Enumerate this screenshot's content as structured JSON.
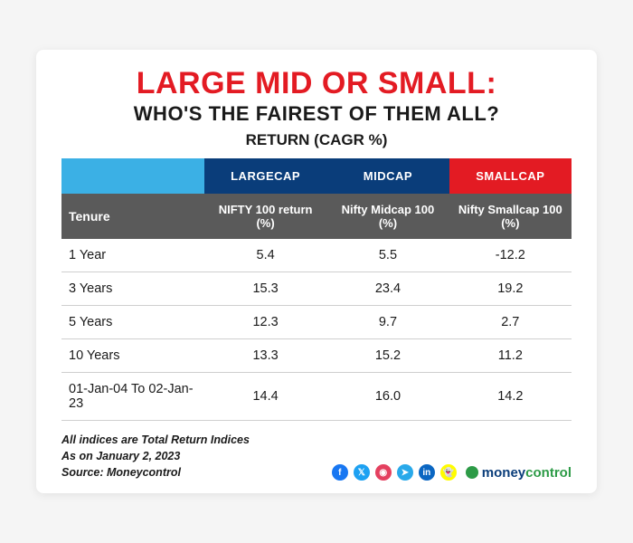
{
  "title": {
    "main": "LARGE MID OR SMALL:",
    "sub": "WHO'S THE FAIREST OF THEM ALL?",
    "metric": "RETURN (CAGR %)",
    "main_color": "#e31b23"
  },
  "table": {
    "header_bg": {
      "blank": "#3bb0e5",
      "col1": "#0a3d7a",
      "col2": "#0a3d7a",
      "col3": "#e31b23"
    },
    "subhead_bg": "#5a5a5a",
    "row_border": "#cfcfcf",
    "columns": {
      "cat": "LARGECAP",
      "cat2": "MIDCAP",
      "cat3": "SMALLCAP"
    },
    "subcolumns": {
      "tenure": "Tenure",
      "c1": "NIFTY 100 return (%)",
      "c2": "Nifty Midcap 100  (%)",
      "c3": "Nifty Smallcap 100  (%)"
    },
    "rows": [
      {
        "tenure": "1 Year",
        "c1": "5.4",
        "c2": "5.5",
        "c3": "-12.2"
      },
      {
        "tenure": "3 Years",
        "c1": "15.3",
        "c2": "23.4",
        "c3": "19.2"
      },
      {
        "tenure": "5 Years",
        "c1": "12.3",
        "c2": "9.7",
        "c3": "2.7"
      },
      {
        "tenure": "10 Years",
        "c1": "13.3",
        "c2": "15.2",
        "c3": "11.2"
      },
      {
        "tenure": "01-Jan-04 To 02-Jan-23",
        "c1": "14.4",
        "c2": "16.0",
        "c3": "14.2"
      }
    ]
  },
  "footnotes": {
    "l1": "All indices are Total Return Indices",
    "l2": "As on January 2, 2023",
    "l3": "Source: Moneycontrol"
  },
  "social": {
    "facebook": {
      "glyph": "f",
      "bg": "#1877f2"
    },
    "twitter": {
      "glyph": "𝕏",
      "bg": "#1da1f2"
    },
    "instagram": {
      "glyph": "◉",
      "bg": "#e4405f"
    },
    "telegram": {
      "glyph": "➤",
      "bg": "#29a9ea"
    },
    "linkedin": {
      "glyph": "in",
      "bg": "#0a66c2"
    },
    "snapchat": {
      "glyph": "👻",
      "bg": "#fffc00"
    }
  },
  "brand": {
    "part1": "money",
    "part2": "control"
  }
}
